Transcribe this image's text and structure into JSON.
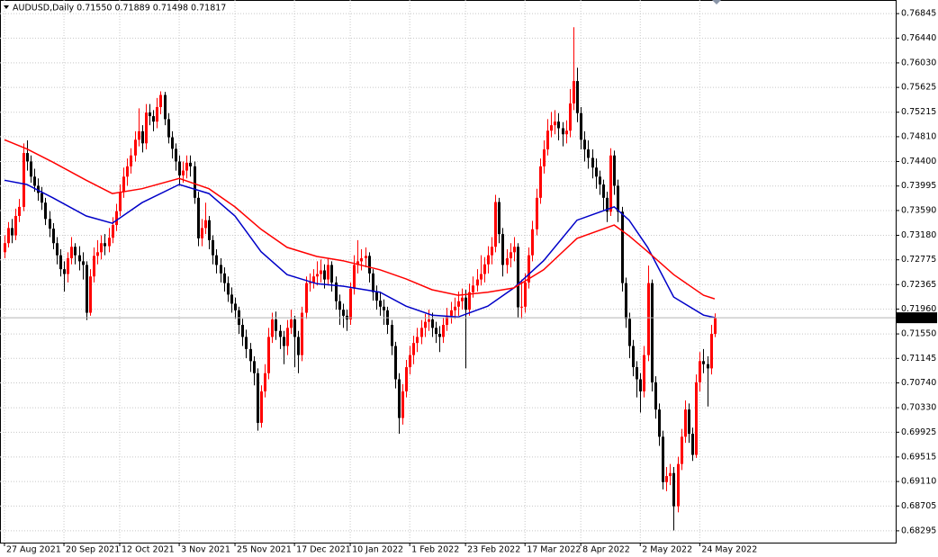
{
  "chart_data": {
    "type": "candlestick",
    "title": "AUDUSD,Daily 0.71550 0.71889 0.71498 0.71817",
    "up_color": "#ff0000",
    "down_color": "#000000",
    "grid": true,
    "current_price": 0.71817,
    "xlim": [
      -1.2,
      239.7
    ],
    "ylim": [
      0.681,
      0.7707
    ],
    "yticks": [
      0.76845,
      {
        "value": 0.7644,
        "label": "0.76440"
      },
      {
        "value": 0.7603,
        "label": "0.76030"
      },
      0.75625,
      0.75215,
      {
        "value": 0.7481,
        "label": "0.74810"
      },
      {
        "value": 0.744,
        "label": "0.74400"
      },
      0.73995,
      {
        "value": 0.7359,
        "label": "0.73590"
      },
      {
        "value": 0.7318,
        "label": "0.73180"
      },
      0.72775,
      0.72365,
      {
        "value": 0.7196,
        "label": "0.71960"
      },
      {
        "value": 0.7155,
        "label": "0.71550"
      },
      0.71145,
      {
        "value": 0.7074,
        "label": "0.70740"
      },
      {
        "value": 0.7033,
        "label": "0.70330"
      },
      0.69925,
      0.69515,
      {
        "value": 0.6911,
        "label": "0.69110"
      },
      0.68705,
      0.68295
    ],
    "xticks": [
      {
        "value": 0,
        "label": "27 Aug 2021"
      },
      {
        "value": 16,
        "label": "20 Sep 2021"
      },
      {
        "value": 31,
        "label": "12 Oct 2021"
      },
      {
        "value": 47,
        "label": "3 Nov 2021"
      },
      {
        "value": 62,
        "label": "25 Nov 2021"
      },
      {
        "value": 78,
        "label": "17 Dec 2021"
      },
      {
        "value": 93,
        "label": "10 Jan 2022"
      },
      {
        "value": 109,
        "label": "1 Feb 2022"
      },
      {
        "value": 124,
        "label": "23 Feb 2022"
      },
      {
        "value": 140,
        "label": "17 Mar 2022"
      },
      {
        "value": 155,
        "label": "8 Apr 2022"
      },
      {
        "value": 171,
        "label": "2 May 2022"
      },
      {
        "value": 187,
        "label": "24 May 2022"
      }
    ],
    "series": [
      {
        "color": "#0000c8",
        "x": [
          0,
          6,
          13,
          22,
          29,
          37,
          47,
          55,
          62,
          69,
          76,
          84,
          91,
          101,
          108,
          115,
          122,
          130,
          137,
          145,
          154,
          164,
          168,
          173,
          180,
          188,
          191
        ],
        "values": [
          0.7409,
          0.7402,
          0.738,
          0.735,
          0.7338,
          0.7372,
          0.7402,
          0.7387,
          0.735,
          0.7291,
          0.7253,
          0.7238,
          0.7234,
          0.7224,
          0.7201,
          0.7186,
          0.7183,
          0.7201,
          0.7231,
          0.7276,
          0.7343,
          0.7365,
          0.7343,
          0.7298,
          0.7216,
          0.7186,
          0.7182
        ]
      },
      {
        "color": "#ff0000",
        "x": [
          0,
          6,
          13,
          22,
          29,
          37,
          47,
          55,
          62,
          69,
          76,
          84,
          91,
          101,
          108,
          115,
          122,
          130,
          137,
          145,
          154,
          164,
          168,
          173,
          180,
          188,
          191
        ],
        "values": [
          0.7476,
          0.7461,
          0.7439,
          0.7409,
          0.7387,
          0.7395,
          0.7412,
          0.7395,
          0.7365,
          0.7328,
          0.7298,
          0.7283,
          0.7276,
          0.7261,
          0.7246,
          0.7228,
          0.7219,
          0.7224,
          0.7231,
          0.7261,
          0.7313,
          0.7335,
          0.7317,
          0.7291,
          0.7253,
          0.7219,
          0.7213
        ]
      }
    ],
    "ohlc": [
      [
        0.729,
        0.7318,
        0.728,
        0.7305
      ],
      [
        0.7305,
        0.734,
        0.7298,
        0.733
      ],
      [
        0.733,
        0.7345,
        0.7305,
        0.7318
      ],
      [
        0.7318,
        0.7362,
        0.731,
        0.735
      ],
      [
        0.735,
        0.7378,
        0.734,
        0.7365
      ],
      [
        0.7365,
        0.747,
        0.7358,
        0.7454
      ],
      [
        0.7454,
        0.7475,
        0.7425,
        0.744
      ],
      [
        0.744,
        0.745,
        0.7405,
        0.7415
      ],
      [
        0.7415,
        0.7428,
        0.739,
        0.74
      ],
      [
        0.74,
        0.7412,
        0.7375,
        0.7388
      ],
      [
        0.7388,
        0.7398,
        0.736,
        0.7372
      ],
      [
        0.7372,
        0.738,
        0.7335,
        0.7345
      ],
      [
        0.7345,
        0.7358,
        0.7315,
        0.7329
      ],
      [
        0.7329,
        0.7338,
        0.7295,
        0.7305
      ],
      [
        0.7305,
        0.7315,
        0.727,
        0.7285
      ],
      [
        0.7285,
        0.7295,
        0.725,
        0.7262
      ],
      [
        0.7262,
        0.7275,
        0.7225,
        0.7254
      ],
      [
        0.7254,
        0.729,
        0.724,
        0.728
      ],
      [
        0.728,
        0.7315,
        0.727,
        0.7299
      ],
      [
        0.7299,
        0.7305,
        0.727,
        0.7285
      ],
      [
        0.7285,
        0.73,
        0.726,
        0.7275
      ],
      [
        0.7275,
        0.729,
        0.7245,
        0.7269
      ],
      [
        0.7269,
        0.7275,
        0.7178,
        0.719
      ],
      [
        0.719,
        0.7262,
        0.7185,
        0.725
      ],
      [
        0.725,
        0.7298,
        0.724,
        0.7284
      ],
      [
        0.7284,
        0.731,
        0.727,
        0.729
      ],
      [
        0.729,
        0.7318,
        0.7278,
        0.7305
      ],
      [
        0.7305,
        0.732,
        0.7285,
        0.73
      ],
      [
        0.73,
        0.733,
        0.729,
        0.7314
      ],
      [
        0.7314,
        0.7348,
        0.7305,
        0.7335
      ],
      [
        0.7335,
        0.737,
        0.7325,
        0.7358
      ],
      [
        0.7358,
        0.7402,
        0.735,
        0.739
      ],
      [
        0.739,
        0.743,
        0.738,
        0.7415
      ],
      [
        0.7415,
        0.7445,
        0.74,
        0.7432
      ],
      [
        0.7432,
        0.7462,
        0.742,
        0.745
      ],
      [
        0.745,
        0.749,
        0.744,
        0.7476
      ],
      [
        0.7476,
        0.7528,
        0.7465,
        0.749
      ],
      [
        0.749,
        0.75,
        0.7455,
        0.747
      ],
      [
        0.747,
        0.7535,
        0.746,
        0.7521
      ],
      [
        0.7521,
        0.7535,
        0.75,
        0.7515
      ],
      [
        0.7515,
        0.7525,
        0.749,
        0.7506
      ],
      [
        0.7506,
        0.7545,
        0.7495,
        0.753
      ],
      [
        0.753,
        0.7556,
        0.7518,
        0.755
      ],
      [
        0.755,
        0.7555,
        0.75,
        0.751
      ],
      [
        0.751,
        0.752,
        0.747,
        0.748
      ],
      [
        0.748,
        0.749,
        0.7445,
        0.7461
      ],
      [
        0.7461,
        0.747,
        0.7425,
        0.744
      ],
      [
        0.744,
        0.745,
        0.74,
        0.7417
      ],
      [
        0.7417,
        0.744,
        0.7405,
        0.7425
      ],
      [
        0.7425,
        0.745,
        0.7412,
        0.7438
      ],
      [
        0.7438,
        0.745,
        0.7415,
        0.7432
      ],
      [
        0.7432,
        0.744,
        0.737,
        0.738
      ],
      [
        0.738,
        0.739,
        0.73,
        0.7313
      ],
      [
        0.7313,
        0.7345,
        0.73,
        0.733
      ],
      [
        0.733,
        0.7372,
        0.732,
        0.7343
      ],
      [
        0.7343,
        0.735,
        0.7295,
        0.731
      ],
      [
        0.731,
        0.7318,
        0.727,
        0.7285
      ],
      [
        0.7285,
        0.7295,
        0.7255,
        0.7269
      ],
      [
        0.7269,
        0.728,
        0.724,
        0.7255
      ],
      [
        0.7255,
        0.7265,
        0.7225,
        0.7239
      ],
      [
        0.7239,
        0.725,
        0.7208,
        0.722
      ],
      [
        0.722,
        0.7232,
        0.719,
        0.7205
      ],
      [
        0.7205,
        0.7215,
        0.718,
        0.7194
      ],
      [
        0.7194,
        0.72,
        0.7155,
        0.717
      ],
      [
        0.717,
        0.718,
        0.7135,
        0.715
      ],
      [
        0.715,
        0.7162,
        0.7115,
        0.713
      ],
      [
        0.713,
        0.714,
        0.7092,
        0.711
      ],
      [
        0.711,
        0.7118,
        0.707,
        0.709
      ],
      [
        0.709,
        0.7098,
        0.6995,
        0.7008
      ],
      [
        0.7008,
        0.707,
        0.7,
        0.706
      ],
      [
        0.706,
        0.7105,
        0.705,
        0.709
      ],
      [
        0.709,
        0.7165,
        0.708,
        0.715
      ],
      [
        0.715,
        0.719,
        0.714,
        0.7179
      ],
      [
        0.7179,
        0.7192,
        0.7145,
        0.716
      ],
      [
        0.716,
        0.717,
        0.713,
        0.715
      ],
      [
        0.715,
        0.716,
        0.7105,
        0.7135
      ],
      [
        0.7135,
        0.7178,
        0.712,
        0.7165
      ],
      [
        0.7165,
        0.7195,
        0.7155,
        0.7179
      ],
      [
        0.7179,
        0.7185,
        0.71,
        0.715
      ],
      [
        0.715,
        0.716,
        0.709,
        0.712
      ],
      [
        0.712,
        0.72,
        0.711,
        0.719
      ],
      [
        0.719,
        0.725,
        0.718,
        0.7239
      ],
      [
        0.7239,
        0.7255,
        0.7225,
        0.724
      ],
      [
        0.724,
        0.7262,
        0.723,
        0.725
      ],
      [
        0.725,
        0.7275,
        0.7235,
        0.7254
      ],
      [
        0.7254,
        0.7278,
        0.724,
        0.726
      ],
      [
        0.726,
        0.727,
        0.723,
        0.7245
      ],
      [
        0.7245,
        0.728,
        0.7235,
        0.7269
      ],
      [
        0.7269,
        0.7275,
        0.7225,
        0.724
      ],
      [
        0.724,
        0.725,
        0.7195,
        0.7209
      ],
      [
        0.7209,
        0.722,
        0.717,
        0.7195
      ],
      [
        0.7195,
        0.7205,
        0.7165,
        0.7185
      ],
      [
        0.7185,
        0.7195,
        0.716,
        0.7179
      ],
      [
        0.7179,
        0.724,
        0.717,
        0.723
      ],
      [
        0.723,
        0.7285,
        0.722,
        0.7269
      ],
      [
        0.7269,
        0.731,
        0.7255,
        0.7275
      ],
      [
        0.7275,
        0.7295,
        0.726,
        0.728
      ],
      [
        0.728,
        0.7298,
        0.7265,
        0.7284
      ],
      [
        0.7284,
        0.729,
        0.724,
        0.7255
      ],
      [
        0.7255,
        0.7262,
        0.721,
        0.7224
      ],
      [
        0.7224,
        0.7235,
        0.7195,
        0.721
      ],
      [
        0.721,
        0.7225,
        0.7185,
        0.72
      ],
      [
        0.72,
        0.7212,
        0.717,
        0.7194
      ],
      [
        0.7194,
        0.72,
        0.7155,
        0.717
      ],
      [
        0.717,
        0.7178,
        0.712,
        0.7135
      ],
      [
        0.7135,
        0.7142,
        0.7065,
        0.708
      ],
      [
        0.708,
        0.709,
        0.699,
        0.7016
      ],
      [
        0.7016,
        0.7072,
        0.7005,
        0.706
      ],
      [
        0.706,
        0.7112,
        0.705,
        0.71
      ],
      [
        0.71,
        0.7135,
        0.7088,
        0.712
      ],
      [
        0.712,
        0.7152,
        0.7105,
        0.714
      ],
      [
        0.714,
        0.7165,
        0.7125,
        0.715
      ],
      [
        0.715,
        0.7178,
        0.7138,
        0.7165
      ],
      [
        0.7165,
        0.7188,
        0.715,
        0.7175
      ],
      [
        0.7175,
        0.7195,
        0.716,
        0.7179
      ],
      [
        0.7179,
        0.719,
        0.715,
        0.7165
      ],
      [
        0.7165,
        0.7175,
        0.714,
        0.7155
      ],
      [
        0.7155,
        0.7168,
        0.7125,
        0.715
      ],
      [
        0.715,
        0.7182,
        0.714,
        0.717
      ],
      [
        0.717,
        0.7198,
        0.716,
        0.7185
      ],
      [
        0.7185,
        0.7208,
        0.7172,
        0.7194
      ],
      [
        0.7194,
        0.7215,
        0.718,
        0.72
      ],
      [
        0.72,
        0.7225,
        0.7185,
        0.7209
      ],
      [
        0.7209,
        0.723,
        0.7195,
        0.7215
      ],
      [
        0.7215,
        0.7228,
        0.7098,
        0.7195
      ],
      [
        0.7195,
        0.7238,
        0.7185,
        0.7224
      ],
      [
        0.7224,
        0.725,
        0.7215,
        0.7235
      ],
      [
        0.7235,
        0.7262,
        0.7225,
        0.7245
      ],
      [
        0.7245,
        0.7285,
        0.7235,
        0.7254
      ],
      [
        0.7254,
        0.7282,
        0.724,
        0.727
      ],
      [
        0.727,
        0.73,
        0.7255,
        0.7285
      ],
      [
        0.7285,
        0.7315,
        0.727,
        0.7299
      ],
      [
        0.7299,
        0.7385,
        0.729,
        0.7373
      ],
      [
        0.7373,
        0.738,
        0.7305,
        0.732
      ],
      [
        0.732,
        0.733,
        0.725,
        0.7269
      ],
      [
        0.7269,
        0.7295,
        0.7255,
        0.728
      ],
      [
        0.728,
        0.7305,
        0.7265,
        0.729
      ],
      [
        0.729,
        0.7315,
        0.7275,
        0.7299
      ],
      [
        0.7299,
        0.7305,
        0.7182,
        0.7199
      ],
      [
        0.7199,
        0.7245,
        0.718,
        0.72
      ],
      [
        0.72,
        0.7255,
        0.719,
        0.724
      ],
      [
        0.724,
        0.7298,
        0.723,
        0.7285
      ],
      [
        0.7285,
        0.7342,
        0.7275,
        0.7328
      ],
      [
        0.7328,
        0.7395,
        0.7318,
        0.738
      ],
      [
        0.738,
        0.7445,
        0.737,
        0.7432
      ],
      [
        0.7432,
        0.7475,
        0.742,
        0.746
      ],
      [
        0.746,
        0.751,
        0.745,
        0.7491
      ],
      [
        0.7491,
        0.7522,
        0.748,
        0.75
      ],
      [
        0.75,
        0.7525,
        0.7485,
        0.7506
      ],
      [
        0.7506,
        0.752,
        0.7475,
        0.7495
      ],
      [
        0.7495,
        0.7505,
        0.7465,
        0.7485
      ],
      [
        0.7485,
        0.7508,
        0.747,
        0.7491
      ],
      [
        0.7491,
        0.756,
        0.748,
        0.7536
      ],
      [
        0.7536,
        0.7662,
        0.7525,
        0.7573
      ],
      [
        0.7573,
        0.7595,
        0.7505,
        0.752
      ],
      [
        0.752,
        0.753,
        0.746,
        0.7476
      ],
      [
        0.7476,
        0.749,
        0.744,
        0.746
      ],
      [
        0.746,
        0.7475,
        0.7428,
        0.7446
      ],
      [
        0.7446,
        0.746,
        0.7412,
        0.743
      ],
      [
        0.743,
        0.7445,
        0.7395,
        0.7415
      ],
      [
        0.7415,
        0.7425,
        0.7385,
        0.7402
      ],
      [
        0.7402,
        0.741,
        0.736,
        0.738
      ],
      [
        0.738,
        0.739,
        0.734,
        0.7357
      ],
      [
        0.7357,
        0.7462,
        0.735,
        0.745
      ],
      [
        0.745,
        0.7458,
        0.7385,
        0.74
      ],
      [
        0.74,
        0.741,
        0.734,
        0.7357
      ],
      [
        0.7357,
        0.7365,
        0.7225,
        0.7239
      ],
      [
        0.7239,
        0.7248,
        0.7165,
        0.718
      ],
      [
        0.718,
        0.719,
        0.7115,
        0.7135
      ],
      [
        0.7135,
        0.7145,
        0.7085,
        0.71
      ],
      [
        0.71,
        0.711,
        0.705,
        0.708
      ],
      [
        0.708,
        0.709,
        0.7025,
        0.706
      ],
      [
        0.706,
        0.7135,
        0.705,
        0.712
      ],
      [
        0.712,
        0.7268,
        0.711,
        0.7239
      ],
      [
        0.7239,
        0.7245,
        0.706,
        0.7075
      ],
      [
        0.7075,
        0.7085,
        0.7015,
        0.703
      ],
      [
        0.703,
        0.704,
        0.697,
        0.6985
      ],
      [
        0.6985,
        0.6995,
        0.6898,
        0.691
      ],
      [
        0.691,
        0.6935,
        0.6895,
        0.692
      ],
      [
        0.692,
        0.694,
        0.6905,
        0.6925
      ],
      [
        0.6925,
        0.6935,
        0.683,
        0.687
      ],
      [
        0.687,
        0.6952,
        0.686,
        0.694
      ],
      [
        0.694,
        0.6998,
        0.693,
        0.6985
      ],
      [
        0.6985,
        0.7045,
        0.6975,
        0.703
      ],
      [
        0.703,
        0.704,
        0.6975,
        0.699
      ],
      [
        0.699,
        0.7,
        0.6945,
        0.6955
      ],
      [
        0.6955,
        0.7088,
        0.695,
        0.7075
      ],
      [
        0.7075,
        0.7125,
        0.706,
        0.711
      ],
      [
        0.711,
        0.713,
        0.709,
        0.7105
      ],
      [
        0.7105,
        0.7118,
        0.7035,
        0.7098
      ],
      [
        0.7098,
        0.717,
        0.7088,
        0.7155
      ],
      [
        0.7155,
        0.71889,
        0.71498,
        0.71817
      ]
    ]
  }
}
